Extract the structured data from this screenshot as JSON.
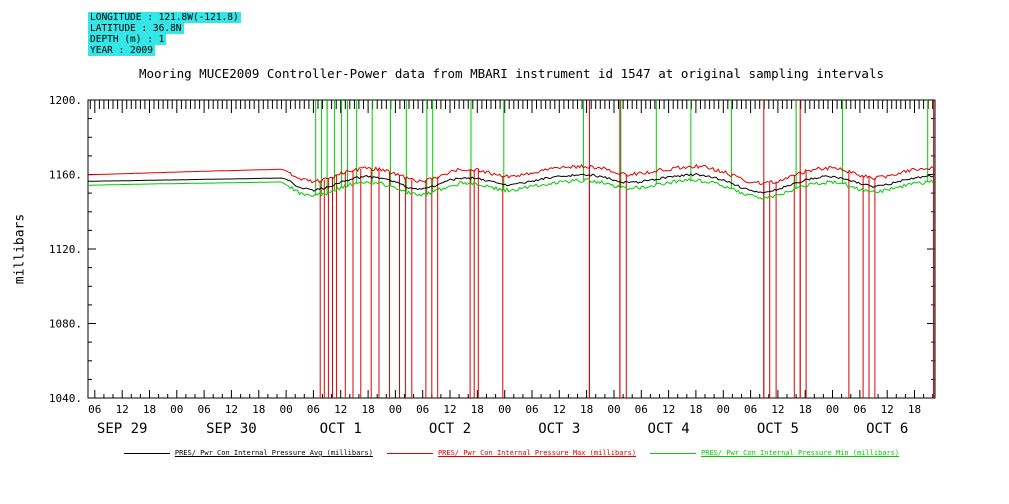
{
  "header": {
    "highlight_color": "#35e6e6",
    "lines": [
      "LONGITUDE : 121.8W(-121.8)",
      "LATITUDE : 36.8N",
      "DEPTH (m) : 1",
      "YEAR : 2009"
    ]
  },
  "title": "Mooring MUCE2009 Controller-Power data from MBARI instrument id 1547 at original sampling intervals",
  "ylabel": "millibars",
  "legend": [
    {
      "label": "PRES/ Pwr Con Internal Pressure Avg (millibars)",
      "color": "#000000"
    },
    {
      "label": "PRES/ Pwr Con Internal Pressure Max (millibars)",
      "color": "#dd0000"
    },
    {
      "label": "PRES/ Pwr Con Internal Pressure Min (millibars)",
      "color": "#00cc00"
    }
  ],
  "chart_data": {
    "type": "line",
    "title": "Mooring MUCE2009 Controller-Power data from MBARI instrument id 1547 at original sampling intervals",
    "ylabel": "millibars",
    "x_unit": "hours since 2009-09-29 00:00",
    "xlim": [
      4.5,
      190.5
    ],
    "ylim": [
      1040,
      1200
    ],
    "y_ticks": [
      1040,
      1080,
      1120,
      1160,
      1200
    ],
    "y_tick_labels": [
      "1040.",
      "1080.",
      "1120.",
      "1160.",
      "1200."
    ],
    "x_major_tick_hours": 6,
    "x_tick_label_cycle": [
      "06",
      "12",
      "18",
      "00"
    ],
    "date_labels": [
      {
        "t": 12,
        "label": "SEP 29"
      },
      {
        "t": 36,
        "label": "SEP 30"
      },
      {
        "t": 60,
        "label": "OCT 1"
      },
      {
        "t": 84,
        "label": "OCT 2"
      },
      {
        "t": 108,
        "label": "OCT 3"
      },
      {
        "t": 132,
        "label": "OCT 4"
      },
      {
        "t": 156,
        "label": "OCT 5"
      },
      {
        "t": 180,
        "label": "OCT 6"
      }
    ],
    "x": [
      4,
      8,
      12,
      16,
      20,
      24,
      28,
      32,
      36,
      40,
      44,
      47,
      48,
      51,
      54,
      57,
      60,
      63,
      66,
      69,
      72,
      75,
      78,
      81,
      84,
      87,
      90,
      93,
      96,
      99,
      102,
      105,
      108,
      111,
      114,
      117,
      120,
      123,
      126,
      129,
      132,
      135,
      138,
      141,
      144,
      147,
      150,
      153,
      156,
      159,
      162,
      165,
      168,
      171,
      174,
      177,
      180,
      183,
      186,
      189,
      190
    ],
    "series": [
      {
        "name": "PRES/ Pwr Con Internal Pressure Avg (millibars)",
        "color": "#000000",
        "noise_amp": 0.6,
        "values": [
          1156.3,
          1156.5,
          1156.6,
          1156.8,
          1157.0,
          1157.1,
          1157.3,
          1157.5,
          1157.6,
          1157.8,
          1158.0,
          1158.1,
          1157.5,
          1153.0,
          1151.5,
          1153.0,
          1156.0,
          1158.0,
          1159.0,
          1158.0,
          1156.0,
          1153.0,
          1152.0,
          1154.0,
          1157.0,
          1158.5,
          1158.0,
          1156.0,
          1154.5,
          1155.0,
          1156.5,
          1158.0,
          1159.0,
          1159.5,
          1160.0,
          1159.0,
          1157.0,
          1155.5,
          1156.0,
          1157.5,
          1158.5,
          1159.5,
          1160.0,
          1159.0,
          1157.0,
          1154.0,
          1151.5,
          1150.5,
          1152.0,
          1154.5,
          1157.0,
          1158.5,
          1159.0,
          1157.5,
          1155.0,
          1153.5,
          1154.5,
          1156.5,
          1158.0,
          1159.0,
          1159.0
        ]
      },
      {
        "name": "PRES/ Pwr Con Internal Pressure Max (millibars)",
        "color": "#dd0000",
        "noise_amp": 1.0,
        "values": [
          1159.8,
          1160.1,
          1160.4,
          1160.7,
          1161.0,
          1161.3,
          1161.6,
          1161.9,
          1162.1,
          1162.4,
          1162.6,
          1162.8,
          1162.0,
          1157.5,
          1156.0,
          1157.5,
          1160.5,
          1162.5,
          1163.5,
          1162.5,
          1160.5,
          1157.5,
          1156.5,
          1158.5,
          1161.5,
          1163.0,
          1162.5,
          1160.5,
          1159.0,
          1159.5,
          1161.0,
          1162.5,
          1163.5,
          1164.0,
          1164.5,
          1163.5,
          1161.5,
          1160.0,
          1160.5,
          1162.0,
          1163.0,
          1164.0,
          1164.5,
          1163.5,
          1161.5,
          1158.5,
          1156.0,
          1155.0,
          1156.5,
          1159.0,
          1161.5,
          1163.0,
          1163.5,
          1162.0,
          1159.5,
          1158.0,
          1159.0,
          1161.0,
          1162.5,
          1163.5,
          1163.5
        ]
      },
      {
        "name": "PRES/ Pwr Con Internal Pressure Min (millibars)",
        "color": "#00cc00",
        "noise_amp": 1.0,
        "values": [
          1154.2,
          1154.4,
          1154.6,
          1154.8,
          1155.0,
          1155.1,
          1155.3,
          1155.4,
          1155.6,
          1155.7,
          1155.9,
          1156.0,
          1154.5,
          1150.0,
          1148.5,
          1150.0,
          1153.0,
          1155.0,
          1156.0,
          1155.0,
          1153.0,
          1150.0,
          1149.0,
          1151.0,
          1154.0,
          1155.5,
          1155.0,
          1153.0,
          1151.5,
          1152.0,
          1153.5,
          1155.0,
          1156.0,
          1156.5,
          1157.0,
          1156.0,
          1154.0,
          1152.5,
          1153.0,
          1154.5,
          1155.5,
          1156.5,
          1157.0,
          1156.0,
          1154.0,
          1151.0,
          1148.5,
          1147.5,
          1149.0,
          1151.5,
          1154.0,
          1155.5,
          1156.0,
          1154.5,
          1152.0,
          1150.5,
          1151.5,
          1153.5,
          1155.0,
          1156.0,
          1156.0
        ]
      }
    ],
    "noise": {
      "start_t": 48.5
    },
    "spikes": {
      "red_down": [
        55.5,
        56.4,
        57.3,
        58.2,
        59.1,
        61.0,
        62.7,
        64.4,
        66.7,
        68.4,
        70.7,
        72.9,
        74.2,
        75.6,
        78.7,
        80.0,
        81.3,
        88.4,
        89.3,
        90.2,
        95.6,
        114.6,
        121.3,
        122.7,
        152.9,
        154.2,
        155.6,
        159.6,
        160.9,
        162.2,
        171.6,
        174.7,
        176.0,
        177.3,
        190.2
      ],
      "red_full": [
        114.6,
        121.3,
        152.9,
        160.9,
        190.2
      ],
      "green_up": [
        54.5,
        55.8,
        57.0,
        58.6,
        60.2,
        61.5,
        63.5,
        66.9,
        70.9,
        74.4,
        78.9,
        80.2,
        88.6,
        95.8,
        113.3,
        121.5,
        129.3,
        136.9,
        145.8,
        160.0,
        170.2,
        188.9
      ]
    }
  }
}
